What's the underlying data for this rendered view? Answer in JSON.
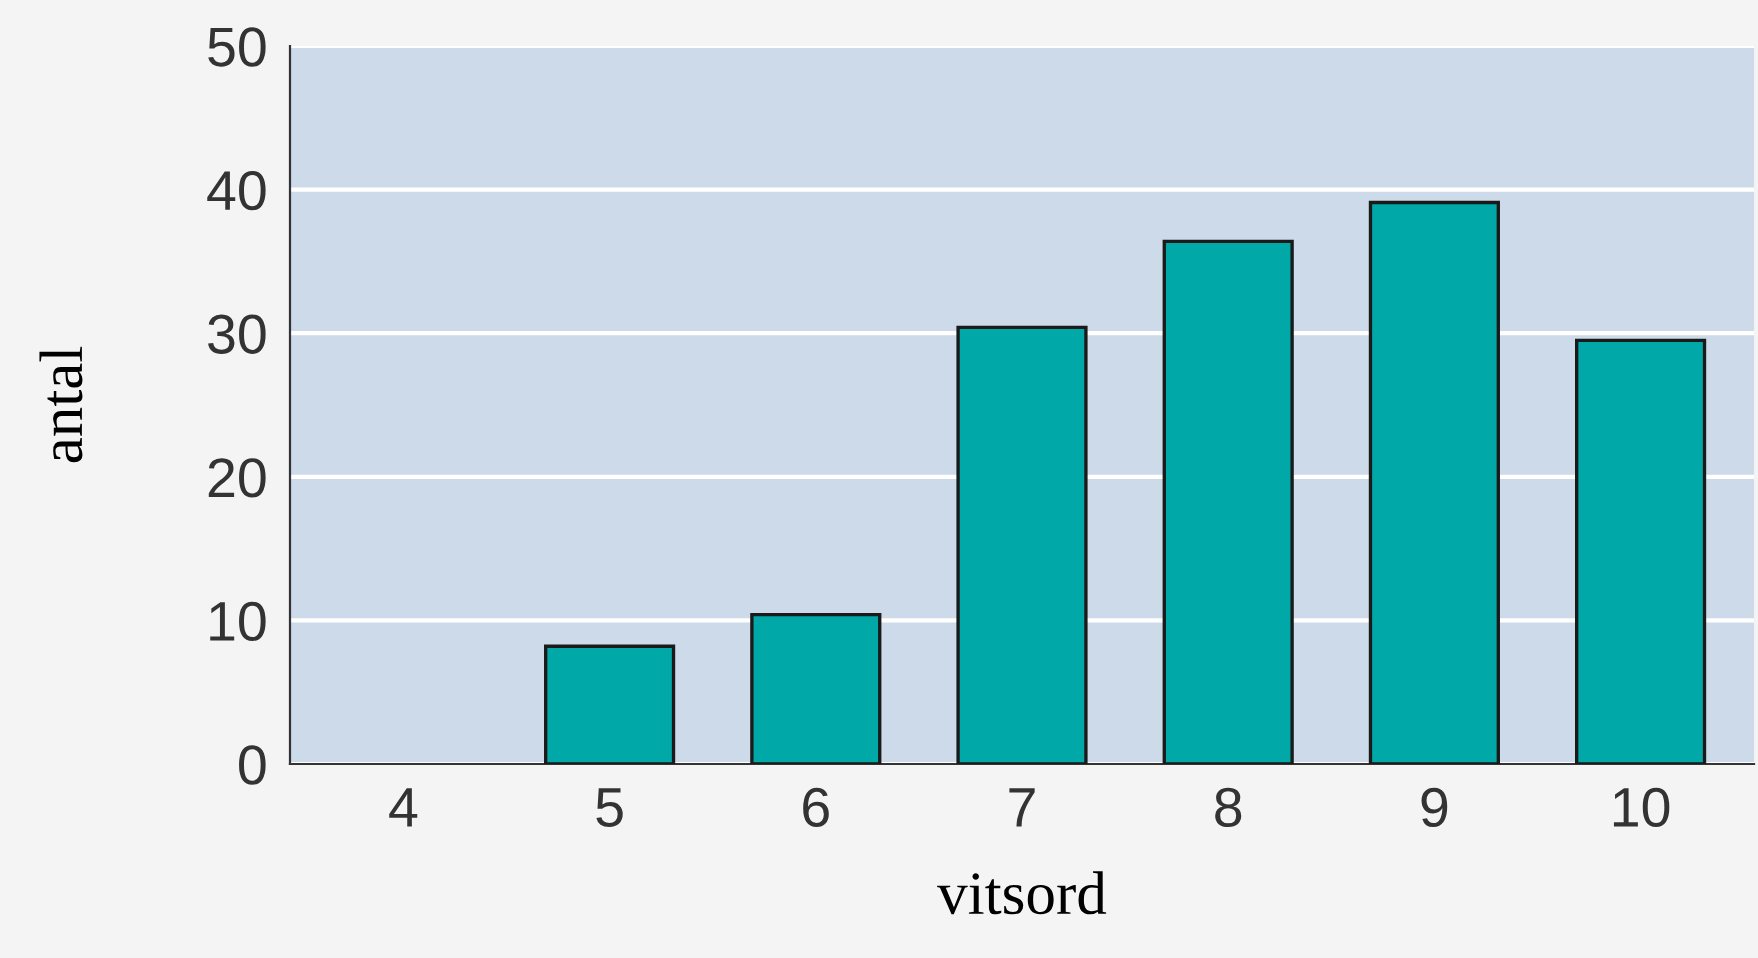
{
  "chart_data": {
    "type": "bar",
    "xlabel": "vitsord",
    "ylabel": "antal",
    "categories": [
      "4",
      "5",
      "6",
      "7",
      "8",
      "9",
      "10"
    ],
    "values": [
      0,
      8.2,
      10.4,
      30.4,
      36.4,
      39.1,
      29.5
    ],
    "color": "#00a8a8",
    "ylim": [
      0,
      50
    ],
    "yticks": [
      0,
      10,
      20,
      30,
      40,
      50
    ],
    "grid": "y"
  }
}
